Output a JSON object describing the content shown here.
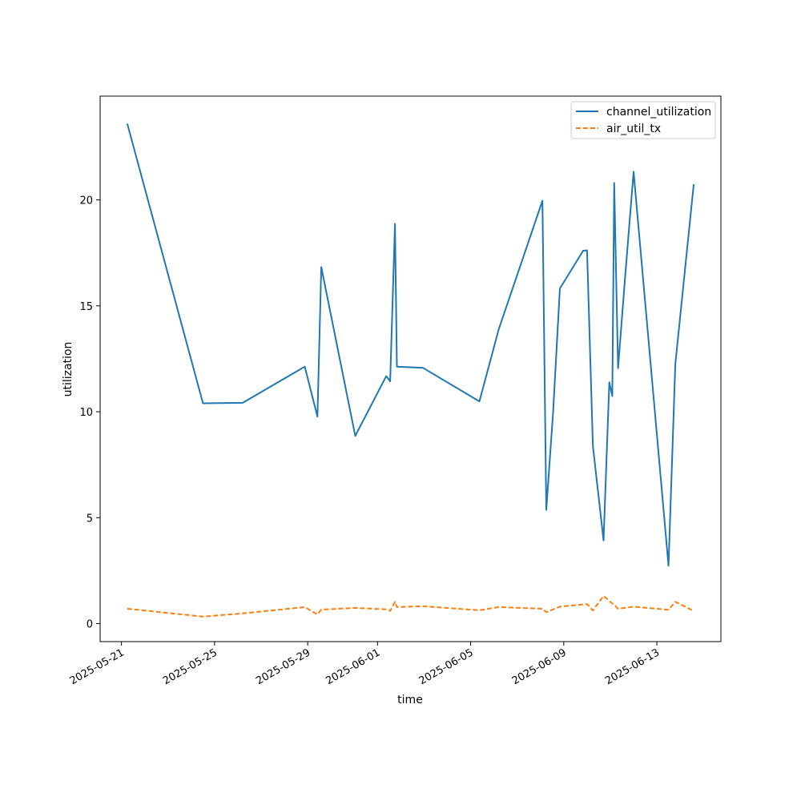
{
  "chart_data": {
    "type": "line",
    "title": "",
    "xlabel": "time",
    "ylabel": "utilization",
    "xlim": [
      "2025-05-20T02:00",
      "2025-06-15T18:00"
    ],
    "ylim": [
      -0.85,
      24.9
    ],
    "x_ticks": [
      "2025-05-21",
      "2025-05-25",
      "2025-05-29",
      "2025-06-01",
      "2025-06-05",
      "2025-06-09",
      "2025-06-13"
    ],
    "y_ticks": [
      0,
      5,
      10,
      15,
      20
    ],
    "grid": false,
    "legend": {
      "position": "top-right"
    },
    "series": [
      {
        "name": "channel_utilization",
        "color": "#1f77b4",
        "dash": "solid",
        "points": [
          [
            "2025-05-21T06:00",
            23.6
          ],
          [
            "2025-05-24T12:00",
            10.4
          ],
          [
            "2025-05-26T05:00",
            10.42
          ],
          [
            "2025-05-28T21:00",
            12.13
          ],
          [
            "2025-05-29T10:00",
            9.77
          ],
          [
            "2025-05-29T14:00",
            16.83
          ],
          [
            "2025-05-31T01:00",
            8.86
          ],
          [
            "2025-06-01T09:00",
            11.68
          ],
          [
            "2025-06-01T13:00",
            11.44
          ],
          [
            "2025-06-01T18:00",
            18.87
          ],
          [
            "2025-06-01T20:00",
            12.13
          ],
          [
            "2025-06-02T23:00",
            12.07
          ],
          [
            "2025-06-05T09:00",
            10.49
          ],
          [
            "2025-06-06T05:00",
            13.9
          ],
          [
            "2025-06-08T02:00",
            19.96
          ],
          [
            "2025-06-08T06:00",
            5.37
          ],
          [
            "2025-06-08T13:00",
            9.96
          ],
          [
            "2025-06-08T20:00",
            15.82
          ],
          [
            "2025-06-09T20:00",
            17.6
          ],
          [
            "2025-06-10T00:00",
            17.62
          ],
          [
            "2025-06-10T06:00",
            8.38
          ],
          [
            "2025-06-10T17:00",
            3.92
          ],
          [
            "2025-06-10T23:00",
            11.39
          ],
          [
            "2025-06-11T02:00",
            10.74
          ],
          [
            "2025-06-11T04:00",
            20.8
          ],
          [
            "2025-06-11T08:00",
            12.05
          ],
          [
            "2025-06-11T15:00",
            16.2
          ],
          [
            "2025-06-12T00:00",
            21.33
          ],
          [
            "2025-06-13T12:00",
            2.73
          ],
          [
            "2025-06-13T19:00",
            12.25
          ],
          [
            "2025-06-14T14:00",
            20.74
          ]
        ]
      },
      {
        "name": "air_util_tx",
        "color": "#ff7f0e",
        "dash": "dashed",
        "points": [
          [
            "2025-05-21T06:00",
            0.7
          ],
          [
            "2025-05-24T12:00",
            0.33
          ],
          [
            "2025-05-26T05:00",
            0.48
          ],
          [
            "2025-05-28T21:00",
            0.78
          ],
          [
            "2025-05-29T10:00",
            0.43
          ],
          [
            "2025-05-29T14:00",
            0.66
          ],
          [
            "2025-05-31T01:00",
            0.74
          ],
          [
            "2025-06-01T09:00",
            0.67
          ],
          [
            "2025-06-01T13:00",
            0.6
          ],
          [
            "2025-06-01T18:00",
            1.03
          ],
          [
            "2025-06-01T20:00",
            0.78
          ],
          [
            "2025-06-02T23:00",
            0.82
          ],
          [
            "2025-06-05T09:00",
            0.63
          ],
          [
            "2025-06-06T05:00",
            0.78
          ],
          [
            "2025-06-08T02:00",
            0.7
          ],
          [
            "2025-06-08T06:00",
            0.54
          ],
          [
            "2025-06-08T20:00",
            0.8
          ],
          [
            "2025-06-10T00:00",
            0.92
          ],
          [
            "2025-06-10T06:00",
            0.62
          ],
          [
            "2025-06-10T17:00",
            1.3
          ],
          [
            "2025-06-11T02:00",
            0.95
          ],
          [
            "2025-06-11T04:00",
            0.9
          ],
          [
            "2025-06-11T08:00",
            0.7
          ],
          [
            "2025-06-12T00:00",
            0.8
          ],
          [
            "2025-06-13T12:00",
            0.65
          ],
          [
            "2025-06-13T19:00",
            1.03
          ],
          [
            "2025-06-14T14:00",
            0.6
          ]
        ]
      }
    ]
  }
}
